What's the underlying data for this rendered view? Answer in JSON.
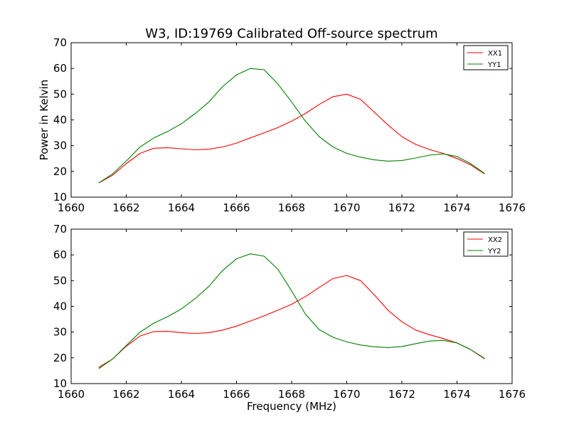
{
  "chart_data": [
    {
      "type": "line",
      "title": "W3, ID:19769 Calibrated Off-source spectrum",
      "xlabel": "",
      "ylabel": "Power in Kelvin",
      "xlim": [
        1660,
        1676
      ],
      "ylim": [
        10,
        70
      ],
      "xticks": [
        1660,
        1662,
        1664,
        1666,
        1668,
        1670,
        1672,
        1674,
        1676
      ],
      "yticks": [
        10,
        20,
        30,
        40,
        50,
        60,
        70
      ],
      "legend_position": "top-right",
      "grid": false,
      "series": [
        {
          "name": "XX1",
          "color": "#ff0000",
          "x": [
            1661.0,
            1661.5,
            1662.0,
            1662.5,
            1663.0,
            1663.5,
            1664.0,
            1664.5,
            1665.0,
            1665.5,
            1666.0,
            1666.5,
            1667.0,
            1667.5,
            1668.0,
            1668.5,
            1669.0,
            1669.5,
            1670.0,
            1670.5,
            1671.0,
            1671.5,
            1672.0,
            1672.5,
            1673.0,
            1673.5,
            1674.0,
            1674.5,
            1675.0
          ],
          "y": [
            15.5,
            18.5,
            23.0,
            27.0,
            29.0,
            29.2,
            28.8,
            28.4,
            28.6,
            29.5,
            31.0,
            33.0,
            35.0,
            37.0,
            39.5,
            42.5,
            46.0,
            49.0,
            50.0,
            48.0,
            43.0,
            38.0,
            33.5,
            30.5,
            28.5,
            27.0,
            25.0,
            22.5,
            19.0
          ]
        },
        {
          "name": "YY1",
          "color": "#008000",
          "x": [
            1661.0,
            1661.5,
            1662.0,
            1662.5,
            1663.0,
            1663.5,
            1664.0,
            1664.5,
            1665.0,
            1665.5,
            1666.0,
            1666.5,
            1667.0,
            1667.5,
            1668.0,
            1668.5,
            1669.0,
            1669.5,
            1670.0,
            1670.5,
            1671.0,
            1671.5,
            1672.0,
            1672.5,
            1673.0,
            1673.5,
            1674.0,
            1674.5,
            1675.0
          ],
          "y": [
            15.5,
            19.0,
            24.0,
            29.5,
            33.0,
            35.5,
            38.5,
            42.5,
            47.0,
            53.0,
            57.5,
            60.0,
            59.5,
            54.0,
            47.0,
            39.5,
            33.5,
            29.5,
            27.0,
            25.5,
            24.5,
            24.0,
            24.2,
            25.2,
            26.3,
            26.8,
            25.8,
            23.0,
            19.2
          ]
        }
      ]
    },
    {
      "type": "line",
      "title": "",
      "xlabel": "Frequency (MHz)",
      "ylabel": "",
      "xlim": [
        1660,
        1676
      ],
      "ylim": [
        10,
        70
      ],
      "xticks": [
        1660,
        1662,
        1664,
        1666,
        1668,
        1670,
        1672,
        1674,
        1676
      ],
      "yticks": [
        10,
        20,
        30,
        40,
        50,
        60,
        70
      ],
      "legend_position": "top-right",
      "grid": false,
      "series": [
        {
          "name": "XX2",
          "color": "#ff0000",
          "x": [
            1661.0,
            1661.5,
            1662.0,
            1662.5,
            1663.0,
            1663.5,
            1664.0,
            1664.5,
            1665.0,
            1665.5,
            1666.0,
            1666.5,
            1667.0,
            1667.5,
            1668.0,
            1668.5,
            1669.0,
            1669.5,
            1670.0,
            1670.5,
            1671.0,
            1671.5,
            1672.0,
            1672.5,
            1673.0,
            1673.5,
            1674.0,
            1674.5,
            1675.0
          ],
          "y": [
            16.3,
            19.5,
            24.5,
            28.5,
            30.2,
            30.3,
            29.8,
            29.5,
            29.8,
            30.8,
            32.3,
            34.3,
            36.3,
            38.5,
            40.8,
            43.8,
            47.3,
            50.8,
            52.0,
            50.0,
            44.5,
            38.5,
            34.0,
            30.8,
            29.0,
            27.5,
            25.8,
            23.2,
            19.8
          ]
        },
        {
          "name": "YY2",
          "color": "#008000",
          "x": [
            1661.0,
            1661.5,
            1662.0,
            1662.5,
            1663.0,
            1663.5,
            1664.0,
            1664.5,
            1665.0,
            1665.5,
            1666.0,
            1666.5,
            1667.0,
            1667.5,
            1668.0,
            1668.5,
            1669.0,
            1669.5,
            1670.0,
            1670.5,
            1671.0,
            1671.5,
            1672.0,
            1672.5,
            1673.0,
            1673.5,
            1674.0,
            1674.5,
            1675.0
          ],
          "y": [
            15.8,
            19.5,
            24.8,
            30.0,
            33.5,
            36.0,
            39.0,
            43.0,
            47.8,
            54.0,
            58.5,
            60.4,
            59.5,
            54.5,
            46.0,
            37.0,
            31.0,
            28.0,
            26.2,
            25.0,
            24.3,
            24.0,
            24.4,
            25.5,
            26.5,
            26.8,
            25.8,
            23.2,
            19.6
          ]
        }
      ]
    }
  ]
}
